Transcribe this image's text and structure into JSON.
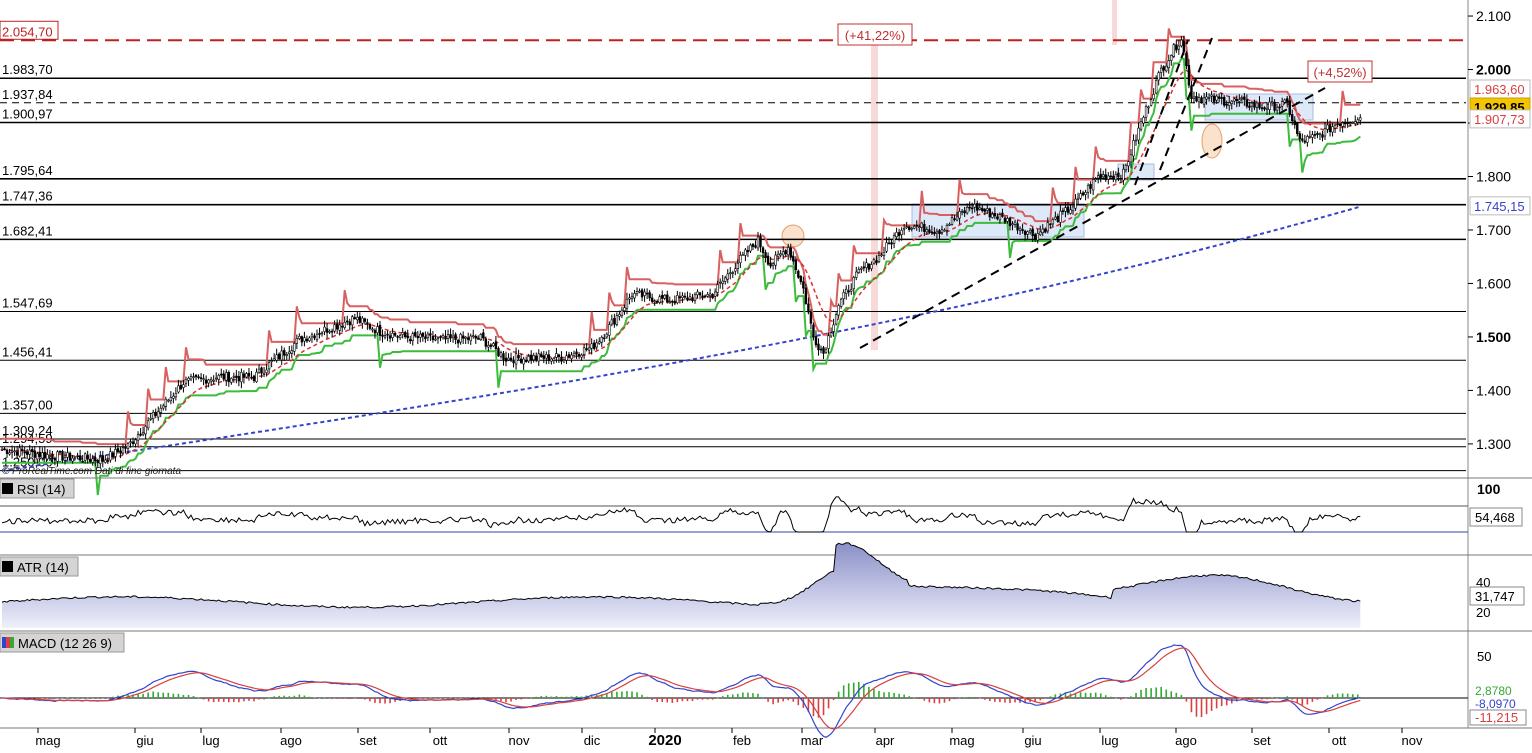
{
  "chart_data": {
    "type": "candlestick",
    "x_axis": {
      "tick_labels": [
        "mag",
        "giu",
        "lug",
        "ago",
        "set",
        "ott",
        "nov",
        "dic",
        "2020",
        "feb",
        "mar",
        "apr",
        "mag",
        "giu",
        "lug",
        "ago",
        "set",
        "ott",
        "nov"
      ]
    },
    "price_panel": {
      "y_axis": {
        "range": [
          1240,
          2130
        ],
        "tick_labels": [
          "2.100",
          "2.000",
          "1.900",
          "1.800",
          "1.700",
          "1.600",
          "1.500",
          "1.400",
          "1.300"
        ],
        "tick_values": [
          2100,
          2000,
          1900,
          1800,
          1700,
          1600,
          1500,
          1400,
          1300
        ]
      },
      "horizontal_levels": [
        {
          "label": "2.054,70",
          "value": 2054.7,
          "style": "dashed-red"
        },
        {
          "label": "1.983,70",
          "value": 1983.7,
          "style": "solid"
        },
        {
          "label": "1.937,84",
          "value": 1937.84,
          "style": "dashed"
        },
        {
          "label": "1.900,97",
          "value": 1900.97,
          "style": "solid"
        },
        {
          "label": "1.795,64",
          "value": 1795.64,
          "style": "solid"
        },
        {
          "label": "1.747,36",
          "value": 1747.36,
          "style": "solid"
        },
        {
          "label": "1.682,41",
          "value": 1682.41,
          "style": "solid"
        },
        {
          "label": "1.547,69",
          "value": 1547.69,
          "style": "solid"
        },
        {
          "label": "1.456,41",
          "value": 1456.41,
          "style": "solid"
        },
        {
          "label": "1.357,00",
          "value": 1357.0,
          "style": "solid"
        },
        {
          "label": "1.309,24",
          "value": 1309.24,
          "style": "solid"
        },
        {
          "label": "1.294,59",
          "value": 1294.59,
          "style": "solid"
        },
        {
          "label": "1.250,00",
          "value": 1250.0,
          "style": "solid"
        }
      ],
      "right_badges": [
        {
          "label": "1.963,60",
          "value": 1963.6,
          "color": "#d94040",
          "bg": "#ffffff"
        },
        {
          "label": "1.929,85",
          "value": 1929.85,
          "color": "#000000",
          "bg": "#f5c400"
        },
        {
          "label": "1.907,73",
          "value": 1907.73,
          "color": "#d94040",
          "bg": "#ffffff"
        },
        {
          "label": "1.745,15",
          "value": 1745.15,
          "color": "#3344cc",
          "bg": "#ffffff"
        }
      ],
      "annotations": [
        "(+41,22%)",
        "(+4,52%)"
      ],
      "source_text": "© ProRealTime.com  Dati di fine giornata",
      "key_points": [
        {
          "t": 0,
          "v": 1290
        },
        {
          "t": 20,
          "v": 1278
        },
        {
          "t": 40,
          "v": 1270
        },
        {
          "t": 50,
          "v": 1296
        },
        {
          "t": 58,
          "v": 1340
        },
        {
          "t": 72,
          "v": 1415
        },
        {
          "t": 85,
          "v": 1425
        },
        {
          "t": 100,
          "v": 1425
        },
        {
          "t": 118,
          "v": 1495
        },
        {
          "t": 140,
          "v": 1535
        },
        {
          "t": 150,
          "v": 1510
        },
        {
          "t": 160,
          "v": 1500
        },
        {
          "t": 175,
          "v": 1495
        },
        {
          "t": 190,
          "v": 1498
        },
        {
          "t": 200,
          "v": 1460
        },
        {
          "t": 222,
          "v": 1462
        },
        {
          "t": 234,
          "v": 1480
        },
        {
          "t": 240,
          "v": 1512
        },
        {
          "t": 250,
          "v": 1580
        },
        {
          "t": 265,
          "v": 1568
        },
        {
          "t": 282,
          "v": 1580
        },
        {
          "t": 292,
          "v": 1640
        },
        {
          "t": 300,
          "v": 1680
        },
        {
          "t": 305,
          "v": 1635
        },
        {
          "t": 312,
          "v": 1668
        },
        {
          "t": 318,
          "v": 1590
        },
        {
          "t": 322,
          "v": 1500
        },
        {
          "t": 326,
          "v": 1470
        },
        {
          "t": 332,
          "v": 1560
        },
        {
          "t": 340,
          "v": 1620
        },
        {
          "t": 348,
          "v": 1650
        },
        {
          "t": 358,
          "v": 1710
        },
        {
          "t": 372,
          "v": 1700
        },
        {
          "t": 385,
          "v": 1745
        },
        {
          "t": 398,
          "v": 1720
        },
        {
          "t": 410,
          "v": 1690
        },
        {
          "t": 425,
          "v": 1745
        },
        {
          "t": 435,
          "v": 1800
        },
        {
          "t": 445,
          "v": 1805
        },
        {
          "t": 452,
          "v": 1900
        },
        {
          "t": 460,
          "v": 2000
        },
        {
          "t": 468,
          "v": 2060
        },
        {
          "t": 472,
          "v": 1950
        },
        {
          "t": 478,
          "v": 1945
        },
        {
          "t": 490,
          "v": 1940
        },
        {
          "t": 500,
          "v": 1930
        },
        {
          "t": 510,
          "v": 1935
        },
        {
          "t": 515,
          "v": 1865
        },
        {
          "t": 522,
          "v": 1875
        },
        {
          "t": 530,
          "v": 1900
        },
        {
          "t": 538,
          "v": 1910
        }
      ]
    },
    "rsi_panel": {
      "label": "RSI (14)",
      "tick_label": "100",
      "value_label": "54,468"
    },
    "atr_panel": {
      "label": "ATR (14)",
      "tick_labels": [
        "40",
        "20"
      ],
      "value_label": "31,747"
    },
    "macd_panel": {
      "label": "MACD (12 26 9)",
      "tick_label": "50",
      "value_labels": [
        "2,8780",
        "-8,0970",
        "-11,215"
      ]
    }
  }
}
